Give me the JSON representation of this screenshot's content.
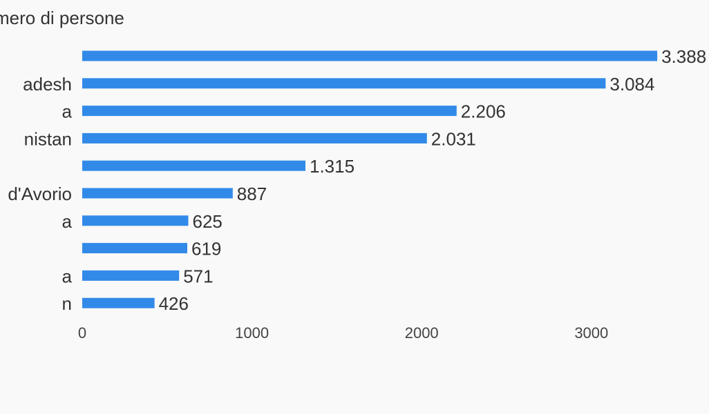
{
  "chart_data": {
    "type": "bar",
    "orientation": "horizontal",
    "title": "mero di persone",
    "categories": [
      "",
      "adesh",
      "a",
      "nistan",
      "",
      "d'Avorio",
      "a",
      "",
      "a",
      "n"
    ],
    "values": [
      3388,
      3084,
      2206,
      2031,
      1315,
      887,
      625,
      619,
      571,
      426
    ],
    "value_labels": [
      "3.388",
      "3.084",
      "2.206",
      "2.031",
      "1.315",
      "887",
      "625",
      "619",
      "571",
      "426"
    ],
    "xticks": [
      0,
      1000,
      2000,
      3000
    ],
    "xlim": [
      0,
      3400
    ],
    "grid": false,
    "bar_color": "#328ae8"
  }
}
